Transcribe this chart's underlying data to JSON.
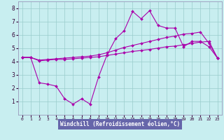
{
  "xlabel": "Windchill (Refroidissement éolien,°C)",
  "xlim": [
    -0.5,
    23.5
  ],
  "ylim": [
    0,
    8.5
  ],
  "yticks": [
    1,
    2,
    3,
    4,
    5,
    6,
    7,
    8
  ],
  "xticks": [
    0,
    1,
    2,
    3,
    4,
    5,
    6,
    7,
    8,
    9,
    10,
    11,
    12,
    13,
    14,
    15,
    16,
    17,
    18,
    19,
    20,
    21,
    22,
    23
  ],
  "bg_color": "#c8eef0",
  "plot_bg": "#c8eef0",
  "line_color": "#aa00aa",
  "xlabel_bg": "#6666aa",
  "xlabel_fg": "#ffffff",
  "grid_color": "#99cccc",
  "line1_x": [
    0,
    1,
    2,
    3,
    4,
    5,
    6,
    7,
    8,
    9,
    10,
    11,
    12,
    13,
    14,
    15,
    16,
    17,
    18,
    19,
    20,
    21,
    22,
    23
  ],
  "line1_y": [
    4.3,
    4.3,
    4.05,
    4.1,
    4.15,
    4.15,
    4.2,
    4.25,
    4.3,
    4.35,
    4.45,
    4.55,
    4.65,
    4.75,
    4.82,
    4.9,
    5.0,
    5.1,
    5.15,
    5.25,
    5.35,
    5.45,
    5.5,
    4.25
  ],
  "line2_x": [
    0,
    1,
    2,
    3,
    4,
    5,
    6,
    7,
    8,
    9,
    10,
    11,
    12,
    13,
    14,
    15,
    16,
    17,
    18,
    19,
    20,
    21,
    22,
    23
  ],
  "line2_y": [
    4.3,
    4.3,
    4.1,
    4.15,
    4.2,
    4.25,
    4.3,
    4.35,
    4.4,
    4.5,
    4.65,
    4.85,
    5.05,
    5.2,
    5.35,
    5.5,
    5.65,
    5.8,
    5.9,
    6.05,
    6.1,
    6.2,
    5.35,
    4.25
  ],
  "line3_x": [
    0,
    1,
    2,
    3,
    4,
    5,
    6,
    7,
    8,
    9,
    10,
    11,
    12,
    13,
    14,
    15,
    16,
    17,
    18,
    19,
    20,
    21,
    22,
    23
  ],
  "line3_y": [
    4.3,
    4.3,
    2.4,
    2.3,
    2.15,
    1.2,
    0.8,
    1.2,
    0.8,
    2.85,
    4.5,
    5.7,
    6.3,
    7.75,
    7.2,
    7.8,
    6.7,
    6.5,
    6.5,
    5.1,
    5.5,
    5.5,
    5.1,
    4.25
  ],
  "markersize": 2.0,
  "linewidth": 0.8
}
